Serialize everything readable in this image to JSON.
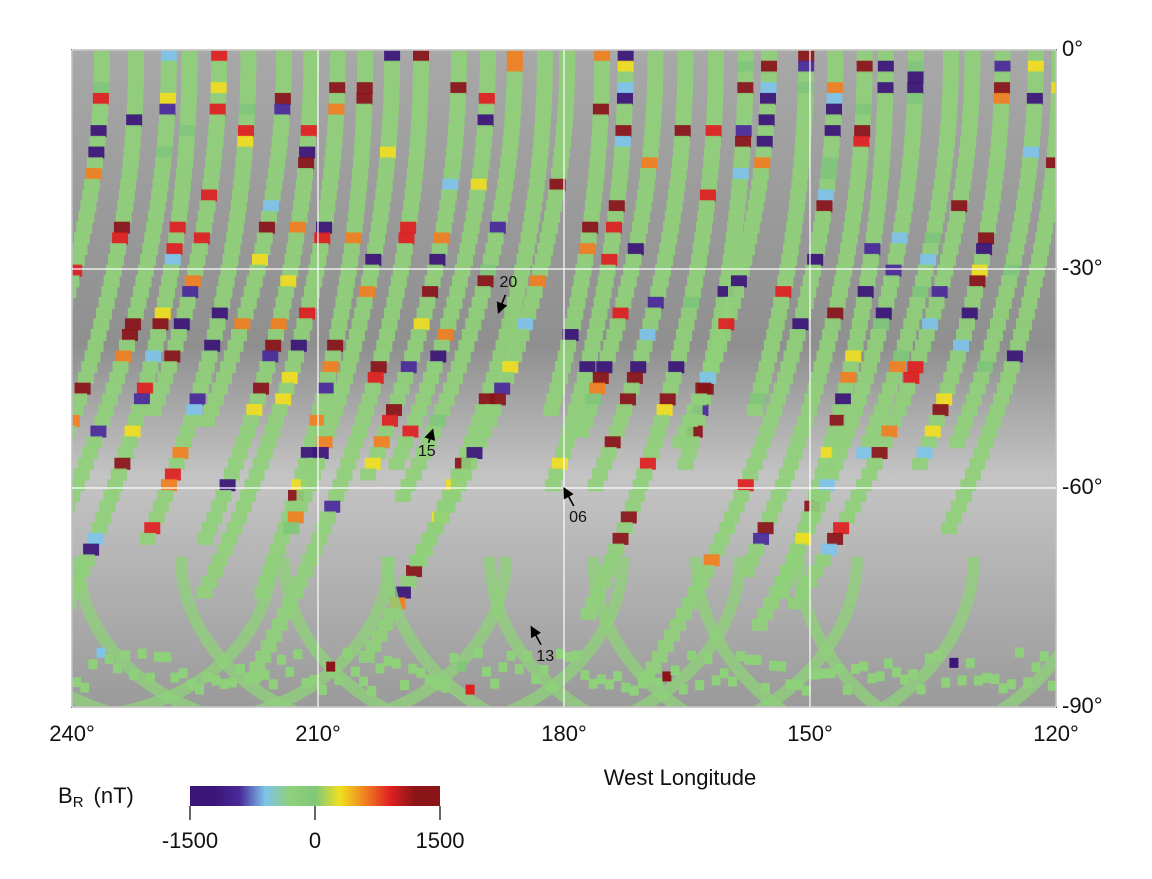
{
  "chart_data": {
    "type": "map",
    "xlabel": "West Longitude",
    "xlim": [
      240,
      120
    ],
    "xticks": [
      {
        "value": 240,
        "label": "240°"
      },
      {
        "value": 210,
        "label": "210°"
      },
      {
        "value": 180,
        "label": "180°"
      },
      {
        "value": 150,
        "label": "150°"
      },
      {
        "value": 120,
        "label": "120°"
      }
    ],
    "ylim": [
      -90,
      0
    ],
    "yticks": [
      {
        "value": 0,
        "label": "0°"
      },
      {
        "value": -30,
        "label": "-30°"
      },
      {
        "value": -60,
        "label": "-60°"
      },
      {
        "value": -90,
        "label": "-90°"
      }
    ],
    "grid": true,
    "annotations": [
      {
        "text": "20",
        "x": 188,
        "y": -36
      },
      {
        "text": "15",
        "x": 196,
        "y": -52
      },
      {
        "text": "06",
        "x": 180,
        "y": -60
      },
      {
        "text": "13",
        "x": 184,
        "y": -79
      }
    ],
    "colorbar": {
      "symbol": "B",
      "subscript": "R",
      "unit": "(nT)",
      "lim": [
        -1500,
        1500
      ],
      "ticks": [
        -1500,
        0,
        1500
      ],
      "colormap": [
        "#3b1578",
        "#3b1578",
        "#4a2a9a",
        "#7fc4ea",
        "#8fd07a",
        "#7fc87a",
        "#f0e020",
        "#f08020",
        "#e02020",
        "#8a1418",
        "#8a1418"
      ]
    }
  }
}
